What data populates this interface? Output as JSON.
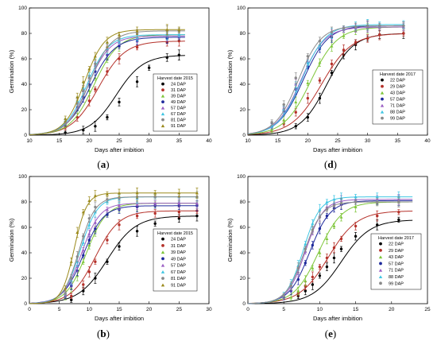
{
  "colors": {
    "s1": "#000000",
    "s2": "#b5312a",
    "s3": "#7ec639",
    "s4": "#1f2a9c",
    "s5": "#9b5fc4",
    "s6": "#3fc6e3",
    "s7": "#8a8a8a",
    "s8": "#9b8a1c"
  },
  "chart_data": [
    {
      "type": "line",
      "panel_label": "a",
      "xlabel": "Days after imbition",
      "ylabel": "Germination (%)",
      "xlim": [
        10,
        40
      ],
      "ylim": [
        0,
        100
      ],
      "xticks": [
        10,
        15,
        20,
        25,
        30,
        35,
        40
      ],
      "yticks": [
        0,
        20,
        40,
        60,
        80,
        100
      ],
      "legend_title": "Harvest date 2015",
      "legend_position": "right",
      "series": [
        {
          "name": "24 DAP",
          "max": 63,
          "t50": 24.5,
          "slope": 0.45,
          "obs_x": [
            16,
            19,
            21,
            23,
            25,
            28,
            30,
            33,
            35
          ],
          "obs_y": [
            2,
            4,
            7,
            14,
            26,
            42,
            53,
            61,
            63
          ]
        },
        {
          "name": "31 DAP",
          "max": 74,
          "t50": 21.5,
          "slope": 0.45,
          "obs_x": [
            16,
            18,
            20,
            21,
            23,
            25,
            28,
            33,
            35
          ],
          "obs_y": [
            6,
            14,
            27,
            36,
            50,
            60,
            69,
            73,
            74
          ]
        },
        {
          "name": "39 DAP",
          "max": 79,
          "t50": 20.8,
          "slope": 0.5,
          "obs_x": [
            16,
            18,
            20,
            21,
            23,
            25,
            28,
            33,
            35
          ],
          "obs_y": [
            8,
            20,
            35,
            45,
            60,
            70,
            76,
            78,
            79
          ]
        },
        {
          "name": "49 DAP",
          "max": 77,
          "t50": 20.2,
          "slope": 0.5,
          "obs_x": [
            16,
            18,
            19,
            20,
            21,
            23,
            25,
            28,
            33,
            35
          ],
          "obs_y": [
            9,
            22,
            30,
            40,
            50,
            63,
            70,
            74,
            76,
            77
          ]
        },
        {
          "name": "57 DAP",
          "max": 78,
          "t50": 19.8,
          "slope": 0.55,
          "obs_x": [
            16,
            18,
            19,
            20,
            21,
            23,
            25,
            28,
            33,
            35
          ],
          "obs_y": [
            10,
            26,
            35,
            45,
            55,
            67,
            73,
            76,
            78,
            78
          ]
        },
        {
          "name": "67 DAP",
          "max": 79,
          "t50": 19.6,
          "slope": 0.55,
          "obs_x": [
            16,
            18,
            19,
            20,
            21,
            23,
            25,
            28,
            33,
            35
          ],
          "obs_y": [
            11,
            27,
            37,
            47,
            57,
            68,
            74,
            77,
            79,
            79
          ]
        },
        {
          "name": "81 DAP",
          "max": 82,
          "t50": 20.0,
          "slope": 0.55,
          "obs_x": [
            16,
            18,
            19,
            20,
            21,
            23,
            25,
            28,
            33,
            35
          ],
          "obs_y": [
            10,
            25,
            35,
            45,
            56,
            69,
            76,
            80,
            82,
            82
          ]
        },
        {
          "name": "91 DAP",
          "max": 83,
          "t50": 19.2,
          "slope": 0.6,
          "obs_x": [
            16,
            18,
            19,
            20,
            21,
            23,
            25,
            28,
            33,
            35
          ],
          "obs_y": [
            13,
            30,
            42,
            52,
            62,
            73,
            79,
            82,
            83,
            83
          ]
        }
      ]
    },
    {
      "type": "line",
      "panel_label": "d",
      "xlabel": "Days after imbition",
      "ylabel": "Germination (%)",
      "xlim": [
        10,
        40
      ],
      "ylim": [
        0,
        100
      ],
      "xticks": [
        10,
        15,
        20,
        25,
        30,
        35,
        40
      ],
      "yticks": [
        0,
        20,
        40,
        60,
        80,
        100
      ],
      "legend_title": "Harvest date 2017",
      "legend_position": "right",
      "series": [
        {
          "name": "22 DAP",
          "max": 80,
          "t50": 23.2,
          "slope": 0.45,
          "obs_x": [
            18,
            20,
            22,
            24,
            26,
            28,
            30,
            32,
            36
          ],
          "obs_y": [
            7,
            14,
            29,
            49,
            63,
            71,
            76,
            79,
            80
          ]
        },
        {
          "name": "29 DAP",
          "max": 80,
          "t50": 22.3,
          "slope": 0.4,
          "obs_x": [
            16,
            18,
            20,
            22,
            24,
            26,
            28,
            30,
            32,
            36
          ],
          "obs_y": [
            9,
            18,
            29,
            43,
            56,
            67,
            73,
            76,
            79,
            80
          ]
        },
        {
          "name": "43 DAP",
          "max": 85,
          "t50": 20.5,
          "slope": 0.45,
          "obs_x": [
            14,
            16,
            18,
            20,
            22,
            24,
            26,
            28,
            30,
            32,
            36
          ],
          "obs_y": [
            4,
            12,
            26,
            41,
            57,
            70,
            78,
            82,
            84,
            85,
            85
          ]
        },
        {
          "name": "57 DAP",
          "max": 86,
          "t50": 19.2,
          "slope": 0.48,
          "obs_x": [
            14,
            16,
            18,
            20,
            22,
            24,
            26,
            28,
            30,
            32,
            36
          ],
          "obs_y": [
            7,
            19,
            36,
            54,
            68,
            77,
            83,
            85,
            86,
            86,
            86
          ]
        },
        {
          "name": "71 DAP",
          "max": 85,
          "t50": 18.8,
          "slope": 0.5,
          "obs_x": [
            14,
            16,
            18,
            20,
            22,
            24,
            26,
            28,
            30,
            32,
            36
          ],
          "obs_y": [
            8,
            21,
            40,
            58,
            71,
            79,
            83,
            84,
            85,
            85,
            85
          ]
        },
        {
          "name": "88 DAP",
          "max": 87,
          "t50": 19.0,
          "slope": 0.5,
          "obs_x": [
            14,
            16,
            18,
            20,
            22,
            24,
            26,
            28,
            30,
            32,
            36
          ],
          "obs_y": [
            8,
            20,
            38,
            57,
            71,
            80,
            84,
            86,
            87,
            87,
            87
          ]
        },
        {
          "name": "99 DAP",
          "max": 86,
          "t50": 18.4,
          "slope": 0.52,
          "obs_x": [
            14,
            16,
            18,
            20,
            22,
            24,
            26,
            28,
            30,
            32,
            36
          ],
          "obs_y": [
            10,
            24,
            45,
            62,
            74,
            81,
            84,
            85,
            86,
            86,
            86
          ]
        }
      ]
    },
    {
      "type": "line",
      "panel_label": "b",
      "xlabel": "Days after imbition",
      "ylabel": "Germination (%)",
      "xlim": [
        0,
        30
      ],
      "ylim": [
        0,
        100
      ],
      "xticks": [
        0,
        5,
        10,
        15,
        20,
        25,
        30
      ],
      "yticks": [
        0,
        20,
        40,
        60,
        80,
        100
      ],
      "legend_title": "Harvest date 2015",
      "legend_position": "right",
      "series": [
        {
          "name": "24 DAP",
          "max": 69,
          "t50": 13.0,
          "slope": 0.42,
          "obs_x": [
            7,
            9,
            11,
            13,
            15,
            18,
            21,
            25,
            28
          ],
          "obs_y": [
            3,
            10,
            20,
            33,
            45,
            57,
            63,
            67,
            69
          ]
        },
        {
          "name": "31 DAP",
          "max": 73,
          "t50": 11.0,
          "slope": 0.5,
          "obs_x": [
            7,
            9,
            10,
            11,
            13,
            15,
            18,
            21,
            25,
            28
          ],
          "obs_y": [
            6,
            15,
            25,
            33,
            50,
            62,
            69,
            71,
            72,
            73
          ]
        },
        {
          "name": "39 DAP",
          "max": 79,
          "t50": 9.5,
          "slope": 0.6,
          "obs_x": [
            6,
            7,
            8,
            9,
            10,
            11,
            13,
            15,
            18,
            21,
            25,
            28
          ],
          "obs_y": [
            5,
            12,
            22,
            33,
            46,
            57,
            70,
            75,
            77,
            78,
            79,
            79
          ]
        },
        {
          "name": "49 DAP",
          "max": 77,
          "t50": 9.0,
          "slope": 0.6,
          "obs_x": [
            6,
            7,
            8,
            9,
            10,
            11,
            13,
            15,
            18,
            21,
            25,
            28
          ],
          "obs_y": [
            6,
            14,
            26,
            38,
            50,
            59,
            70,
            74,
            76,
            77,
            77,
            77
          ]
        },
        {
          "name": "57 DAP",
          "max": 79,
          "t50": 8.7,
          "slope": 0.65,
          "obs_x": [
            6,
            7,
            8,
            9,
            10,
            11,
            13,
            15,
            18,
            21,
            25,
            28
          ],
          "obs_y": [
            7,
            16,
            29,
            42,
            55,
            64,
            74,
            77,
            78,
            79,
            79,
            79
          ]
        },
        {
          "name": "67 DAP",
          "max": 84,
          "t50": 8.5,
          "slope": 0.7,
          "obs_x": [
            6,
            7,
            8,
            9,
            10,
            11,
            13,
            15,
            18,
            21,
            25,
            28
          ],
          "obs_y": [
            8,
            18,
            33,
            48,
            62,
            72,
            80,
            82,
            83,
            84,
            84,
            84
          ]
        },
        {
          "name": "81 DAP",
          "max": 84,
          "t50": 8.3,
          "slope": 0.75,
          "obs_x": [
            6,
            7,
            8,
            9,
            10,
            11,
            13,
            15,
            18,
            21,
            25,
            28
          ],
          "obs_y": [
            8,
            20,
            37,
            53,
            67,
            76,
            82,
            83,
            84,
            84,
            84,
            84
          ]
        },
        {
          "name": "91 DAP",
          "max": 87,
          "t50": 7.5,
          "slope": 0.95,
          "obs_x": [
            6,
            7,
            8,
            9,
            10,
            11,
            13,
            15,
            18,
            21,
            25,
            28
          ],
          "obs_y": [
            12,
            33,
            56,
            72,
            81,
            85,
            86,
            87,
            87,
            87,
            87,
            87
          ]
        }
      ]
    },
    {
      "type": "line",
      "panel_label": "e",
      "xlabel": "Days after imbition",
      "ylabel": "Germination (%)",
      "xlim": [
        0,
        25
      ],
      "ylim": [
        0,
        100
      ],
      "xticks": [
        0,
        5,
        10,
        15,
        20,
        25
      ],
      "yticks": [
        0,
        20,
        40,
        60,
        80,
        100
      ],
      "legend_title": "Harvest date 2017",
      "legend_position": "right",
      "series": [
        {
          "name": "22 DAP",
          "max": 66,
          "t50": 13.0,
          "slope": 0.5,
          "obs_x": [
            7,
            8,
            9,
            10,
            11,
            12,
            13,
            15,
            18,
            21
          ],
          "obs_y": [
            6,
            10,
            15,
            22,
            29,
            36,
            43,
            53,
            62,
            66
          ]
        },
        {
          "name": "29 DAP",
          "max": 73,
          "t50": 11.2,
          "slope": 0.5,
          "obs_x": [
            7,
            8,
            9,
            10,
            11,
            12,
            13,
            15,
            18,
            21
          ],
          "obs_y": [
            8,
            14,
            21,
            29,
            36,
            44,
            51,
            61,
            69,
            72
          ]
        },
        {
          "name": "43 DAP",
          "max": 80,
          "t50": 9.8,
          "slope": 0.6,
          "obs_x": [
            6,
            7,
            8,
            9,
            10,
            11,
            12,
            13,
            15,
            18,
            21
          ],
          "obs_y": [
            5,
            10,
            18,
            28,
            40,
            51,
            61,
            68,
            76,
            79,
            80
          ]
        },
        {
          "name": "57 DAP",
          "max": 81,
          "t50": 8.6,
          "slope": 0.7,
          "obs_x": [
            5,
            6,
            7,
            8,
            9,
            10,
            11,
            12,
            13,
            15,
            18,
            21
          ],
          "obs_y": [
            5,
            10,
            19,
            32,
            46,
            59,
            69,
            75,
            78,
            80,
            81,
            81
          ]
        },
        {
          "name": "71 DAP",
          "max": 82,
          "t50": 8.0,
          "slope": 0.8,
          "obs_x": [
            5,
            6,
            7,
            8,
            9,
            10,
            11,
            12,
            13,
            15,
            18,
            21
          ],
          "obs_y": [
            6,
            13,
            25,
            41,
            57,
            69,
            76,
            79,
            81,
            82,
            82,
            82
          ]
        },
        {
          "name": "88 DAP",
          "max": 84,
          "t50": 7.7,
          "slope": 0.85,
          "obs_x": [
            5,
            6,
            7,
            8,
            9,
            10,
            11,
            12,
            13,
            15,
            18,
            21
          ],
          "obs_y": [
            7,
            16,
            30,
            47,
            63,
            74,
            80,
            82,
            83,
            84,
            84,
            84
          ]
        },
        {
          "name": "99 DAP",
          "max": 80,
          "t50": 7.8,
          "slope": 0.8,
          "obs_x": [
            5,
            6,
            7,
            8,
            9,
            10,
            11,
            12,
            13,
            15,
            18,
            21
          ],
          "obs_y": [
            6,
            14,
            28,
            43,
            58,
            68,
            74,
            77,
            79,
            80,
            80,
            80
          ]
        }
      ]
    }
  ]
}
